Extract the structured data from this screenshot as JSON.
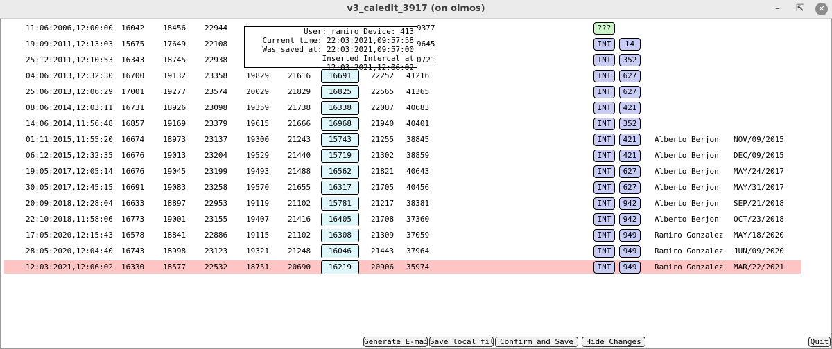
{
  "window": {
    "title": "v3_caledit_3917 (on olmos)"
  },
  "tooltip": {
    "lines": [
      "User: ramiro Device: 413",
      "Current time: 22:03:2021,09:57:58",
      "Was saved at: 22:03:2021,09:57:00",
      "Inserted Intercal at 12:03:2021,12:06:02"
    ]
  },
  "table": {
    "rows": [
      {
        "time": "11:06:2006,12:00:00",
        "cells": [
          "16042",
          "18456",
          "22944",
          null,
          null,
          null,
          null,
          "9377"
        ],
        "type": "???"
      },
      {
        "time": "19:09:2011,12:13:03",
        "cells": [
          "15675",
          "17649",
          "22108",
          null,
          null,
          null,
          null,
          "9645"
        ],
        "type": "INT",
        "code": "14"
      },
      {
        "time": "25:12:2011,12:10:53",
        "cells": [
          "16343",
          "18745",
          "22938",
          null,
          null,
          null,
          null,
          "0721"
        ],
        "type": "INT",
        "code": "352"
      },
      {
        "time": "04:06:2013,12:32:30",
        "cells": [
          "16700",
          "19132",
          "23358",
          "19829",
          "21616",
          "16691",
          "22252",
          "41216"
        ],
        "type": "INT",
        "code": "627"
      },
      {
        "time": "25:06:2013,12:06:29",
        "cells": [
          "17001",
          "19277",
          "23574",
          "20029",
          "21829",
          "16825",
          "22565",
          "41365"
        ],
        "type": "INT",
        "code": "627"
      },
      {
        "time": "08:06:2014,12:03:11",
        "cells": [
          "16731",
          "18926",
          "23098",
          "19359",
          "21738",
          "16338",
          "22087",
          "40683"
        ],
        "type": "INT",
        "code": "421"
      },
      {
        "time": "14:06:2014,11:56:48",
        "cells": [
          "16857",
          "19169",
          "23379",
          "19615",
          "21666",
          "16968",
          "21940",
          "40401"
        ],
        "type": "INT",
        "code": "352"
      },
      {
        "time": "01:11:2015,11:55:20",
        "cells": [
          "16674",
          "18973",
          "23137",
          "19300",
          "21243",
          "15743",
          "21255",
          "38845"
        ],
        "type": "INT",
        "code": "421",
        "name": "Alberto Berjon",
        "date": "NOV/09/2015"
      },
      {
        "time": "06:12:2015,12:32:35",
        "cells": [
          "16676",
          "19013",
          "23204",
          "19529",
          "21440",
          "15719",
          "21302",
          "38859"
        ],
        "type": "INT",
        "code": "421",
        "name": "Alberto Berjon",
        "date": "DEC/09/2015"
      },
      {
        "time": "19:05:2017,12:05:14",
        "cells": [
          "16676",
          "19045",
          "23199",
          "19493",
          "21488",
          "16562",
          "21821",
          "40643"
        ],
        "type": "INT",
        "code": "627",
        "name": "Alberto Berjon",
        "date": "MAY/24/2017"
      },
      {
        "time": "30:05:2017,12:45:15",
        "cells": [
          "16691",
          "19083",
          "23258",
          "19570",
          "21655",
          "16317",
          "21705",
          "40456"
        ],
        "type": "INT",
        "code": "627",
        "name": "Alberto Berjon",
        "date": "MAY/31/2017"
      },
      {
        "time": "20:09:2018,12:28:04",
        "cells": [
          "16633",
          "18897",
          "22953",
          "19119",
          "21102",
          "15781",
          "21217",
          "38381"
        ],
        "type": "INT",
        "code": "942",
        "name": "Alberto Berjon",
        "date": "SEP/21/2018"
      },
      {
        "time": "22:10:2018,11:58:06",
        "cells": [
          "16773",
          "19001",
          "23155",
          "19407",
          "21416",
          "16405",
          "21708",
          "37360"
        ],
        "type": "INT",
        "code": "942",
        "name": "Alberto Berjon",
        "date": "OCT/23/2018"
      },
      {
        "time": "17:05:2020,12:15:43",
        "cells": [
          "16578",
          "18841",
          "22886",
          "19115",
          "21102",
          "16308",
          "21309",
          "37059"
        ],
        "type": "INT",
        "code": "949",
        "name": "Ramiro Gonzalez",
        "date": "MAY/18/2020"
      },
      {
        "time": "28:05:2020,12:04:40",
        "cells": [
          "16743",
          "18998",
          "23123",
          "19321",
          "21248",
          "16046",
          "21443",
          "37964"
        ],
        "type": "INT",
        "code": "949",
        "name": "Ramiro Gonzalez",
        "date": "JUN/09/2020"
      },
      {
        "time": "12:03:2021,12:06:02",
        "cells": [
          "16330",
          "18577",
          "22532",
          "18751",
          "20690",
          "16219",
          "20906",
          "35974"
        ],
        "type": "INT",
        "code": "949",
        "name": "Ramiro Gonzalez",
        "date": "MAR/22/2021"
      }
    ]
  },
  "buttons": [
    "Generate E-mail",
    "Save local file",
    "Confirm and Save",
    "Hide Changes",
    "Quit"
  ]
}
